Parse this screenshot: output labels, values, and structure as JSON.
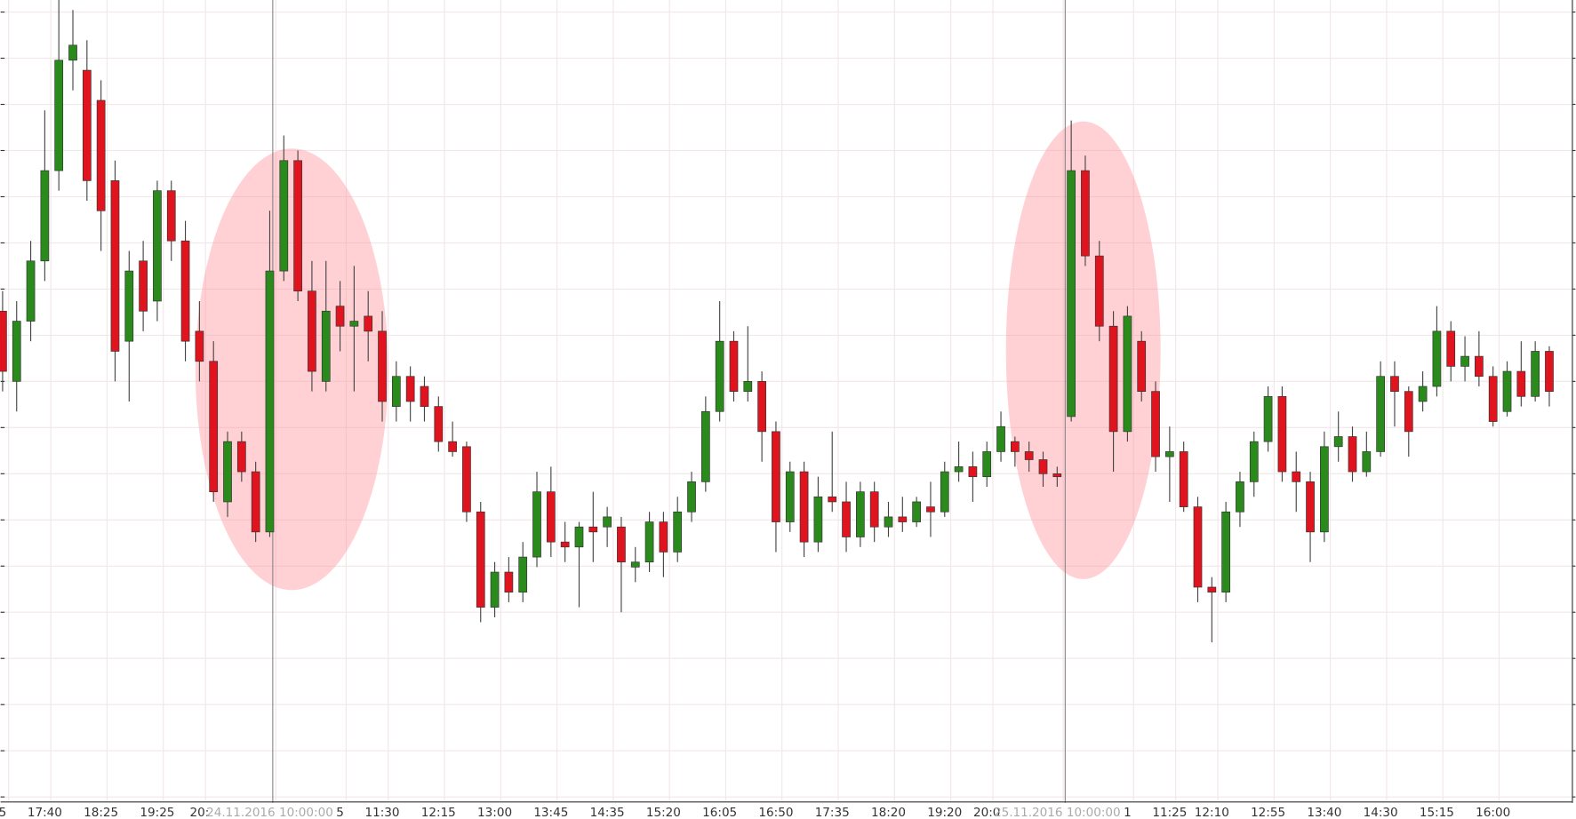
{
  "chart_data": {
    "type": "candlestick",
    "categories": [
      "5",
      null,
      null,
      "17:40",
      null,
      null,
      null,
      "18:25",
      null,
      null,
      null,
      "19:25",
      null,
      null,
      "20:",
      null,
      null,
      null,
      null,
      "24.11.2016 10:00:00",
      null,
      null,
      null,
      null,
      "5",
      null,
      null,
      "11:30",
      null,
      null,
      null,
      "12:15",
      null,
      null,
      null,
      "13:00",
      null,
      null,
      null,
      "13:45",
      null,
      null,
      null,
      "14:35",
      null,
      null,
      null,
      "15:20",
      null,
      null,
      null,
      "16:05",
      null,
      null,
      null,
      "16:50",
      null,
      null,
      null,
      "17:35",
      null,
      null,
      null,
      "18:20",
      null,
      null,
      null,
      "19:20",
      null,
      null,
      "20:0",
      null,
      null,
      null,
      null,
      "25.11.2016 10:00:00",
      null,
      null,
      null,
      null,
      "1",
      null,
      null,
      "11:25",
      null,
      null,
      "12:10",
      null,
      null,
      null,
      "12:55",
      null,
      null,
      null,
      "13:40",
      null,
      null,
      null,
      "14:30",
      null,
      null,
      null,
      "15:15",
      null,
      null,
      null,
      "16:00",
      null,
      null,
      null,
      null
    ],
    "open": [
      490,
      420,
      480,
      540,
      630,
      740,
      730,
      700,
      620,
      460,
      540,
      500,
      610,
      560,
      470,
      440,
      300,
      360,
      330,
      270,
      530,
      640,
      510,
      420,
      495,
      475,
      485,
      470,
      395,
      425,
      415,
      395,
      360,
      355,
      290,
      195,
      230,
      210,
      245,
      310,
      260,
      255,
      275,
      275,
      275,
      235,
      240,
      280,
      250,
      290,
      320,
      390,
      460,
      410,
      420,
      370,
      280,
      330,
      260,
      305,
      300,
      265,
      310,
      275,
      285,
      280,
      295,
      290,
      330,
      335,
      325,
      350,
      360,
      350,
      342,
      328,
      385,
      630,
      545,
      475,
      370,
      460,
      410,
      345,
      350,
      295,
      215,
      210,
      290,
      320,
      360,
      405,
      330,
      320,
      270,
      355,
      365,
      330,
      350,
      425,
      410,
      400,
      415,
      470,
      435,
      445,
      425,
      390,
      430,
      405,
      450
    ],
    "high": [
      510,
      500,
      560,
      690,
      800,
      790,
      760,
      720,
      640,
      550,
      560,
      620,
      620,
      580,
      500,
      460,
      370,
      370,
      340,
      590,
      665,
      650,
      540,
      540,
      520,
      535,
      510,
      490,
      440,
      435,
      425,
      405,
      380,
      360,
      300,
      240,
      245,
      260,
      330,
      335,
      280,
      280,
      310,
      295,
      285,
      255,
      290,
      290,
      305,
      330,
      405,
      500,
      470,
      475,
      430,
      380,
      340,
      340,
      325,
      370,
      320,
      320,
      320,
      300,
      305,
      305,
      320,
      340,
      360,
      350,
      360,
      390,
      365,
      360,
      350,
      335,
      680,
      645,
      560,
      490,
      495,
      470,
      420,
      375,
      360,
      305,
      225,
      300,
      330,
      370,
      415,
      415,
      350,
      330,
      370,
      390,
      375,
      370,
      440,
      440,
      415,
      430,
      495,
      480,
      465,
      470,
      435,
      440,
      460,
      460,
      455
    ],
    "low": [
      410,
      390,
      460,
      520,
      610,
      710,
      600,
      550,
      420,
      400,
      470,
      480,
      540,
      440,
      420,
      300,
      285,
      320,
      260,
      265,
      520,
      500,
      410,
      410,
      450,
      410,
      440,
      380,
      380,
      380,
      380,
      350,
      345,
      280,
      180,
      185,
      200,
      200,
      235,
      245,
      240,
      195,
      240,
      255,
      190,
      220,
      230,
      225,
      240,
      280,
      310,
      380,
      400,
      400,
      340,
      250,
      270,
      245,
      250,
      290,
      250,
      255,
      260,
      265,
      270,
      275,
      265,
      285,
      320,
      300,
      315,
      340,
      335,
      330,
      315,
      315,
      380,
      535,
      460,
      330,
      360,
      400,
      330,
      300,
      290,
      200,
      160,
      200,
      275,
      305,
      350,
      320,
      290,
      240,
      260,
      340,
      320,
      325,
      345,
      375,
      345,
      390,
      405,
      420,
      420,
      415,
      375,
      385,
      395,
      400,
      395
    ],
    "close": [
      430,
      480,
      540,
      630,
      740,
      755,
      620,
      590,
      450,
      530,
      490,
      610,
      560,
      460,
      440,
      310,
      360,
      330,
      270,
      530,
      640,
      510,
      430,
      490,
      475,
      480,
      470,
      400,
      425,
      400,
      395,
      360,
      350,
      290,
      195,
      230,
      210,
      245,
      310,
      260,
      255,
      275,
      270,
      285,
      240,
      240,
      280,
      250,
      290,
      320,
      390,
      460,
      410,
      420,
      370,
      280,
      330,
      260,
      305,
      300,
      265,
      310,
      275,
      285,
      280,
      300,
      290,
      330,
      335,
      325,
      350,
      375,
      350,
      342,
      328,
      325,
      630,
      545,
      475,
      370,
      485,
      410,
      345,
      350,
      295,
      215,
      210,
      290,
      320,
      360,
      405,
      330,
      320,
      270,
      355,
      365,
      330,
      350,
      425,
      410,
      370,
      415,
      470,
      435,
      445,
      425,
      380,
      430,
      405,
      450,
      410
    ],
    "up_color": "#2a8a1c",
    "down_color": "#e0141e",
    "ylim": [
      0,
      800
    ],
    "yticks": [
      6,
      52,
      98,
      144,
      190,
      236,
      282,
      328,
      374,
      420,
      466,
      512,
      558,
      604,
      650,
      696,
      742,
      788
    ],
    "grid": true
  }
}
